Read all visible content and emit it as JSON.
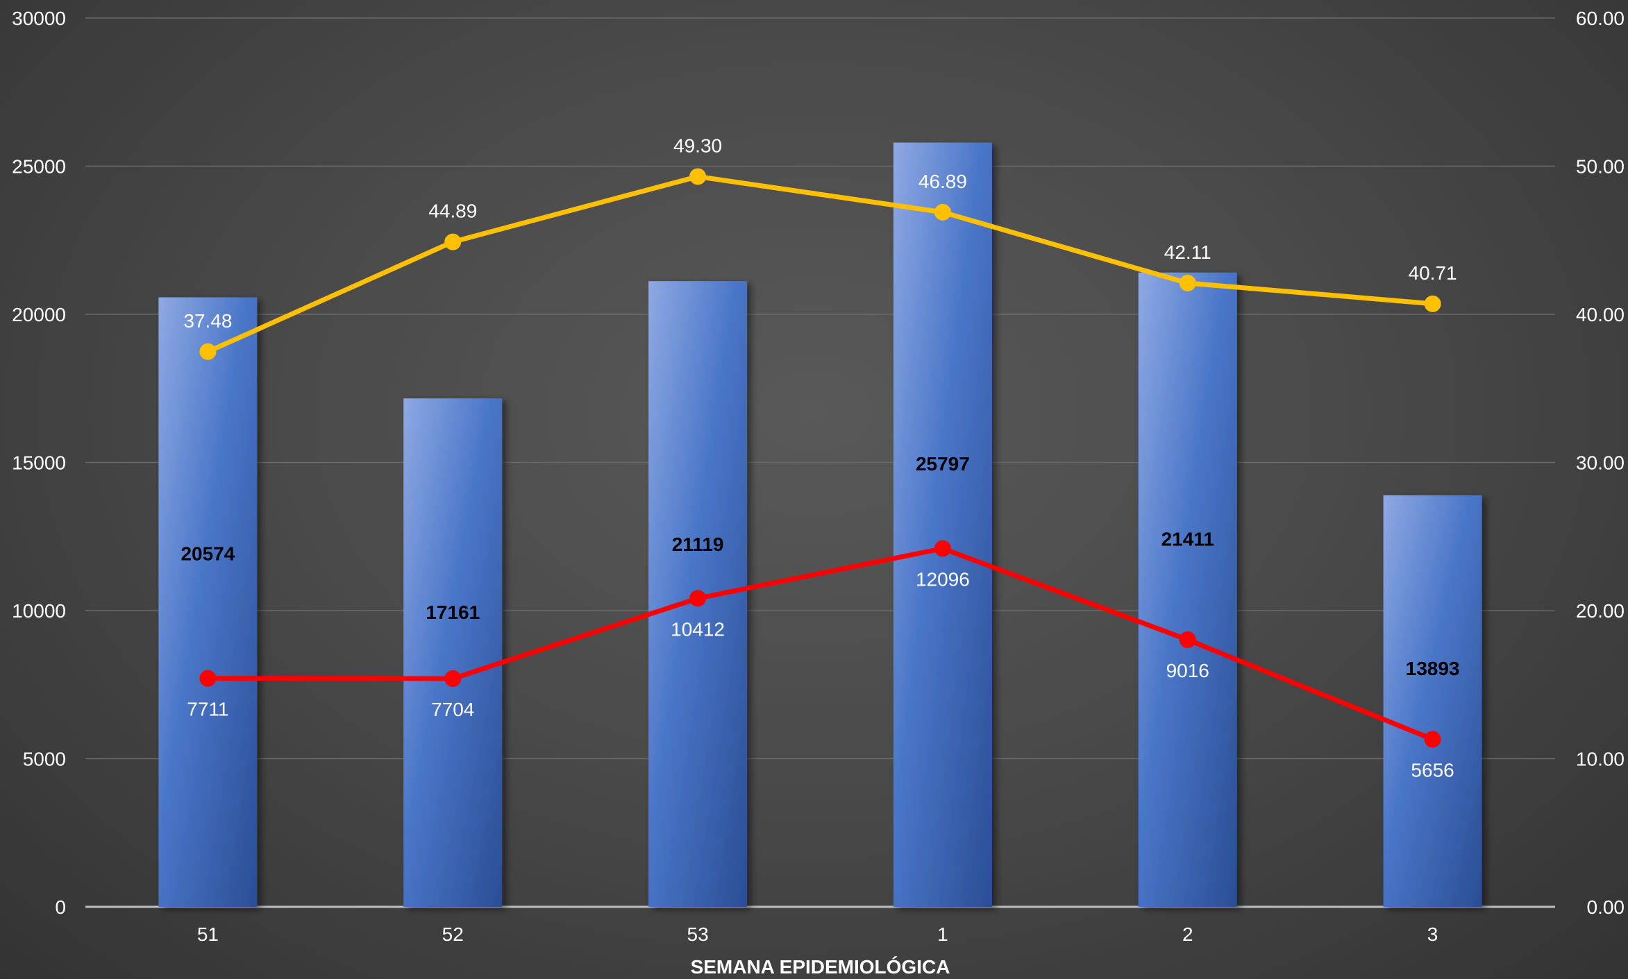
{
  "chart_data": {
    "type": "bar",
    "categories": [
      "51",
      "52",
      "53",
      "1",
      "2",
      "3"
    ],
    "xlabel": "SEMANA EPIDEMIOLÓGICA",
    "ylim_left": [
      0,
      30000
    ],
    "ylim_right": [
      0,
      60
    ],
    "left_ticks": [
      "0",
      "5000",
      "10000",
      "15000",
      "20000",
      "25000",
      "30000"
    ],
    "right_ticks": [
      "0.00",
      "10.00",
      "20.00",
      "30.00",
      "40.00",
      "50.00",
      "60.00"
    ],
    "grid": true,
    "series": [
      {
        "type": "bar",
        "axis": "left",
        "values": [
          20574,
          17161,
          21119,
          25797,
          21411,
          13893
        ],
        "labels": [
          "20574",
          "17161",
          "21119",
          "25797",
          "21411",
          "13893"
        ],
        "color": "#4472c4"
      },
      {
        "type": "line",
        "axis": "left",
        "values": [
          7711,
          7704,
          10412,
          12096,
          9016,
          5656
        ],
        "labels": [
          "7711",
          "7704",
          "10412",
          "12096",
          "9016",
          "5656"
        ],
        "color": "#ff0000"
      },
      {
        "type": "line",
        "axis": "right",
        "values": [
          37.48,
          44.89,
          49.3,
          46.89,
          42.11,
          40.71
        ],
        "labels": [
          "37.48",
          "44.89",
          "49.30",
          "46.89",
          "42.11",
          "40.71"
        ],
        "color": "#ffc000"
      }
    ]
  }
}
